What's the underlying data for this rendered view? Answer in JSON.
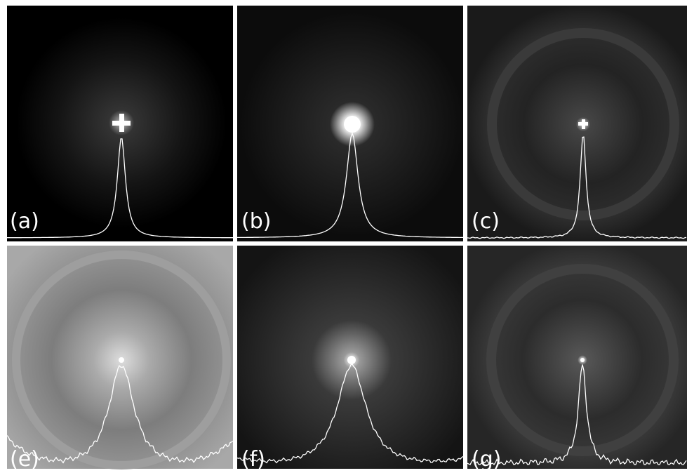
{
  "panels": [
    {
      "label": "(a)"
    },
    {
      "label": "(b)"
    },
    {
      "label": "(c)"
    },
    {
      "label": "(e)"
    },
    {
      "label": "(f)"
    },
    {
      "label": "(g)"
    }
  ]
}
